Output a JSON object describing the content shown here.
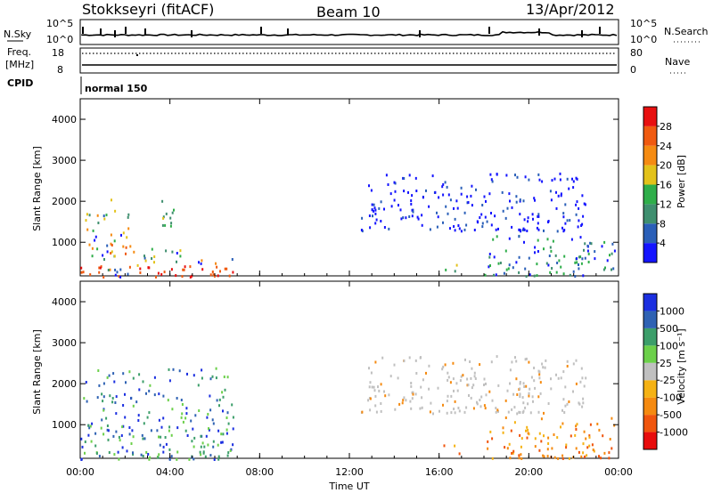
{
  "header": {
    "station": "Stokkseyri (fitACF)",
    "beam": "Beam 10",
    "date": "13/Apr/2012"
  },
  "labels": {
    "nsky": "N.Sky",
    "nsearch": "N.Search",
    "freq_line1": "Freq.",
    "freq_line2": "[MHz]",
    "nave": "Nave",
    "cpid": "CPID",
    "cpid_value": "normal 150"
  },
  "small_axes": {
    "noise_left": [
      "10^5",
      "10^0"
    ],
    "noise_right": [
      "10^5",
      "10^0"
    ],
    "freq_left": [
      "18",
      "8"
    ],
    "nave_right": [
      "80",
      "0"
    ]
  },
  "colors": {
    "power": [
      "#1414ff",
      "#2a5fb8",
      "#3f8f6f",
      "#2fae4a",
      "#e3c21a",
      "#f58b12",
      "#f05a10",
      "#e81010"
    ],
    "velocity": [
      "#e80c0c",
      "#f0550d",
      "#f58a10",
      "#f5b214",
      "#c0c0c0",
      "#6cd04a",
      "#3c9e6a",
      "#2f62b3",
      "#1b2fe0"
    ]
  },
  "chart_data": [
    {
      "type": "heatmap",
      "name": "power",
      "ylabel": "Slant Range [km]",
      "ylim": [
        180,
        4500
      ],
      "yticks": [
        "1000",
        "2000",
        "3000",
        "4000"
      ],
      "xlim_hours": [
        0,
        24
      ],
      "colorbar_label": "Power [dB]",
      "colorbar_ticks": [
        "4",
        "8",
        "12",
        "16",
        "20",
        "24",
        "28"
      ],
      "colorbar_range": [
        0,
        30
      ],
      "echo_regions": [
        {
          "t0": 0.0,
          "t1": 1.0,
          "r0": 180,
          "r1": 1800,
          "level": "mixed-high"
        },
        {
          "t0": 1.0,
          "t1": 2.2,
          "r0": 180,
          "r1": 2400,
          "level": "mixed"
        },
        {
          "t0": 2.2,
          "t1": 6.8,
          "r0": 180,
          "r1": 900,
          "level": "mixed-high"
        },
        {
          "t0": 3.5,
          "t1": 4.2,
          "r0": 1400,
          "r1": 2100,
          "level": "mid"
        },
        {
          "t0": 12.5,
          "t1": 22.5,
          "r0": 1300,
          "r1": 2700,
          "level": "low"
        },
        {
          "t0": 15.8,
          "t1": 17.0,
          "r0": 300,
          "r1": 550,
          "level": "mid"
        },
        {
          "t0": 18.0,
          "t1": 23.8,
          "r0": 200,
          "r1": 1200,
          "level": "low-mid"
        }
      ]
    },
    {
      "type": "heatmap",
      "name": "velocity",
      "ylabel": "Slant Range [km]",
      "ylim": [
        180,
        4500
      ],
      "yticks": [
        "1000",
        "2000",
        "3000",
        "4000"
      ],
      "xlim_hours": [
        0,
        24
      ],
      "xticks": [
        "00:00",
        "04:00",
        "08:00",
        "12:00",
        "16:00",
        "20:00",
        "00:00"
      ],
      "xlabel": "Time UT",
      "colorbar_label": "Velocity [m s⁻¹]",
      "colorbar_ticks": [
        "1000",
        "500",
        "100",
        "25",
        "-25",
        "-100",
        "-500",
        "-1000"
      ],
      "echo_regions": [
        {
          "t0": 0.0,
          "t1": 6.8,
          "r0": 180,
          "r1": 2400,
          "level": "positive"
        },
        {
          "t0": 12.5,
          "t1": 22.5,
          "r0": 1300,
          "r1": 2700,
          "level": "near-zero"
        },
        {
          "t0": 15.8,
          "t1": 17.0,
          "r0": 300,
          "r1": 550,
          "level": "negative"
        },
        {
          "t0": 18.0,
          "t1": 23.8,
          "r0": 200,
          "r1": 1200,
          "level": "negative"
        }
      ]
    }
  ]
}
